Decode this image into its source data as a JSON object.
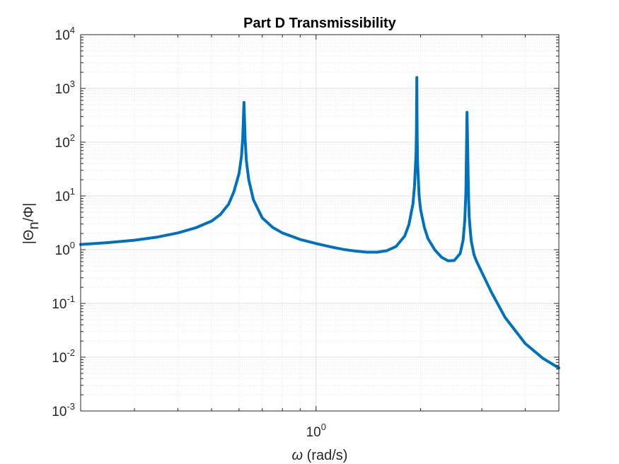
{
  "chart_data": {
    "type": "line",
    "title": "Part D Transmissibility",
    "xlabel": {
      "symbol": "ω",
      "text": " (rad/s)"
    },
    "ylabel": {
      "open": "|Θ",
      "sub": "n",
      "close": "/Φ|"
    },
    "x_scale": "log",
    "y_scale": "log",
    "xlim": [
      0.21,
      5.0
    ],
    "ylim": [
      0.001,
      10000
    ],
    "grid": true,
    "minor_grid": true,
    "x_ticks": [
      {
        "value": 1,
        "base": "10",
        "exp": "0"
      }
    ],
    "y_ticks": [
      {
        "value": 0.001,
        "base": "10",
        "exp": "-3"
      },
      {
        "value": 0.01,
        "base": "10",
        "exp": "-2"
      },
      {
        "value": 0.1,
        "base": "10",
        "exp": "-1"
      },
      {
        "value": 1,
        "base": "10",
        "exp": "0"
      },
      {
        "value": 10,
        "base": "10",
        "exp": "1"
      },
      {
        "value": 100,
        "base": "10",
        "exp": "2"
      },
      {
        "value": 1000,
        "base": "10",
        "exp": "3"
      },
      {
        "value": 10000,
        "base": "10",
        "exp": "4"
      }
    ],
    "series": [
      {
        "color": "#0072BD",
        "x": [
          0.21,
          0.25,
          0.3,
          0.35,
          0.4,
          0.45,
          0.5,
          0.53,
          0.56,
          0.58,
          0.6,
          0.61,
          0.615,
          0.618,
          0.62,
          0.622,
          0.625,
          0.63,
          0.64,
          0.66,
          0.7,
          0.75,
          0.8,
          0.9,
          1.0,
          1.1,
          1.2,
          1.3,
          1.4,
          1.5,
          1.6,
          1.7,
          1.8,
          1.85,
          1.9,
          1.92,
          1.94,
          1.945,
          1.948,
          1.95,
          1.952,
          1.955,
          1.96,
          1.98,
          2.0,
          2.05,
          2.1,
          2.2,
          2.3,
          2.4,
          2.5,
          2.6,
          2.65,
          2.68,
          2.7,
          2.72,
          2.74,
          2.75,
          2.76,
          2.78,
          2.8,
          2.85,
          2.9,
          3.0,
          3.2,
          3.5,
          4.0,
          4.5,
          5.0
        ],
        "y": [
          1.25,
          1.35,
          1.5,
          1.72,
          2.05,
          2.55,
          3.4,
          4.5,
          7.0,
          12,
          26,
          55,
          120,
          300,
          550,
          280,
          110,
          45,
          20,
          8.5,
          3.9,
          2.6,
          2.05,
          1.55,
          1.3,
          1.13,
          1.01,
          0.94,
          0.9,
          0.9,
          0.96,
          1.15,
          1.8,
          2.9,
          7.0,
          15,
          60,
          160,
          500,
          1600,
          400,
          120,
          40,
          10,
          5.5,
          2.6,
          1.6,
          0.98,
          0.72,
          0.62,
          0.63,
          0.85,
          1.5,
          3.5,
          12,
          360,
          25,
          8,
          4,
          2.2,
          1.4,
          0.8,
          0.6,
          0.38,
          0.16,
          0.055,
          0.018,
          0.0095,
          0.0063
        ]
      }
    ]
  }
}
